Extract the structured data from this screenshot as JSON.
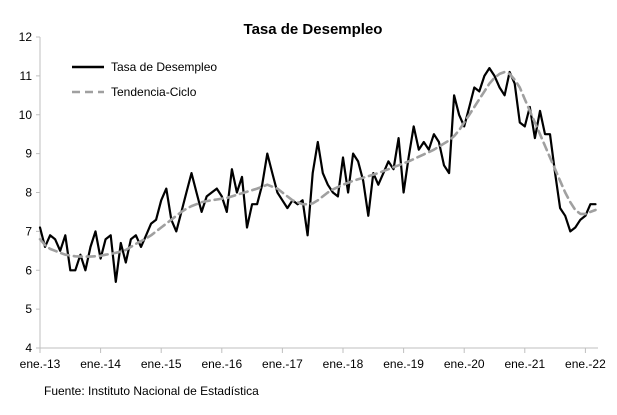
{
  "chart_data": {
    "type": "line",
    "title": "Tasa de Desempleo",
    "xlabel": "",
    "ylabel": "",
    "ylim": [
      4,
      12
    ],
    "yticks": [
      4,
      5,
      6,
      7,
      8,
      9,
      10,
      11,
      12
    ],
    "xticks": [
      "ene.-13",
      "ene.-14",
      "ene.-15",
      "ene.-16",
      "ene.-17",
      "ene.-18",
      "ene.-19",
      "ene.-20",
      "ene.-21",
      "ene.-22"
    ],
    "x_start": "ene.-13",
    "frequency": "monthly",
    "grid": false,
    "legend_position": "top-left",
    "series": [
      {
        "name": "Tasa de Desempleo",
        "style": "solid",
        "color": "#000000",
        "values": [
          7.1,
          6.6,
          6.9,
          6.8,
          6.5,
          6.9,
          6.0,
          6.0,
          6.4,
          6.0,
          6.6,
          7.0,
          6.3,
          6.8,
          6.9,
          5.7,
          6.7,
          6.2,
          6.8,
          6.9,
          6.6,
          6.9,
          7.2,
          7.3,
          7.8,
          8.1,
          7.3,
          7.0,
          7.5,
          8.0,
          8.5,
          8.0,
          7.5,
          7.9,
          8.0,
          8.1,
          7.9,
          7.5,
          8.6,
          8.0,
          8.4,
          7.1,
          7.7,
          7.7,
          8.2,
          9.0,
          8.5,
          8.0,
          7.8,
          7.6,
          7.8,
          7.7,
          7.8,
          6.9,
          8.5,
          9.3,
          8.5,
          8.2,
          8.0,
          7.9,
          8.9,
          8.0,
          9.0,
          8.8,
          8.3,
          7.4,
          8.5,
          8.2,
          8.5,
          8.8,
          8.6,
          9.4,
          8.0,
          8.9,
          9.7,
          9.1,
          9.3,
          9.1,
          9.5,
          9.3,
          8.7,
          8.5,
          10.5,
          10.0,
          9.7,
          10.2,
          10.7,
          10.6,
          11.0,
          11.2,
          11.0,
          10.7,
          10.5,
          11.1,
          10.8,
          9.8,
          9.7,
          10.2,
          9.4,
          10.1,
          9.5,
          9.5,
          8.5,
          7.6,
          7.4,
          7.0,
          7.1,
          7.3,
          7.4,
          7.7,
          7.7
        ]
      },
      {
        "name": "Tendencia-Ciclo",
        "style": "dashed",
        "color": "#a0a0a0",
        "values": [
          6.8,
          6.65,
          6.55,
          6.5,
          6.45,
          6.4,
          6.38,
          6.36,
          6.35,
          6.35,
          6.35,
          6.36,
          6.37,
          6.4,
          6.42,
          6.45,
          6.48,
          6.52,
          6.6,
          6.68,
          6.75,
          6.82,
          6.9,
          7.0,
          7.1,
          7.2,
          7.3,
          7.4,
          7.5,
          7.58,
          7.65,
          7.7,
          7.75,
          7.78,
          7.8,
          7.82,
          7.84,
          7.86,
          7.9,
          7.94,
          7.98,
          8.02,
          8.06,
          8.1,
          8.15,
          8.2,
          8.15,
          8.1,
          8.0,
          7.9,
          7.8,
          7.75,
          7.7,
          7.7,
          7.72,
          7.8,
          7.9,
          8.0,
          8.08,
          8.14,
          8.2,
          8.25,
          8.3,
          8.34,
          8.38,
          8.42,
          8.46,
          8.5,
          8.55,
          8.6,
          8.65,
          8.7,
          8.75,
          8.8,
          8.86,
          8.92,
          8.98,
          9.04,
          9.1,
          9.18,
          9.26,
          9.34,
          9.45,
          9.6,
          9.8,
          10.0,
          10.2,
          10.4,
          10.6,
          10.8,
          10.95,
          11.05,
          11.1,
          11.05,
          10.9,
          10.7,
          10.4,
          10.1,
          9.8,
          9.5,
          9.2,
          8.9,
          8.6,
          8.3,
          8.0,
          7.75,
          7.55,
          7.45,
          7.45,
          7.5,
          7.55
        ]
      }
    ]
  },
  "footer": {
    "source": "Fuente: Instituto Nacional de Estadística"
  }
}
